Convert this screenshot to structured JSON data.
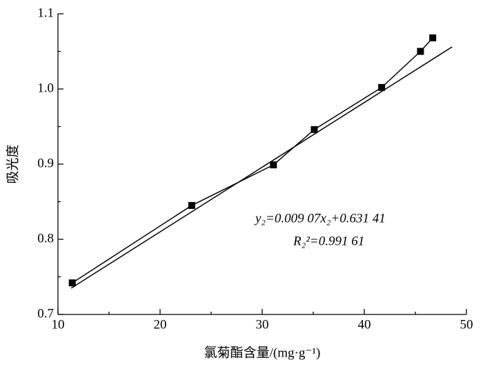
{
  "chart_data": {
    "type": "scatter",
    "xlabel": "氯菊酯含量/(mg·g⁻¹)",
    "ylabel": "吸光度",
    "annotations": [
      "y₂=0.009 07x₂+0.631 41",
      "R₂²=0.991 61"
    ],
    "xlim": [
      10,
      50
    ],
    "xticks": [
      10,
      20,
      30,
      40,
      50
    ],
    "xticks_minor": [
      15,
      25,
      35,
      45
    ],
    "ylim": [
      0.7,
      1.1
    ],
    "yticks": [
      0.7,
      0.8,
      0.9,
      {
        "value": 1,
        "label": "1.0"
      },
      1.1
    ],
    "yticks_minor": [
      0.75,
      0.85,
      0.95,
      1.05
    ],
    "color": "#000000",
    "series": [
      {
        "x": [
          11.4,
          23.1,
          31.1,
          35.1,
          41.7,
          45.5,
          46.7
        ],
        "values": [
          0.742,
          0.845,
          0.899,
          0.946,
          1.002,
          1.05,
          1.068
        ]
      },
      {
        "x": [
          11.3,
          48.6
        ],
        "values": [
          0.735,
          1.056
        ]
      }
    ]
  }
}
